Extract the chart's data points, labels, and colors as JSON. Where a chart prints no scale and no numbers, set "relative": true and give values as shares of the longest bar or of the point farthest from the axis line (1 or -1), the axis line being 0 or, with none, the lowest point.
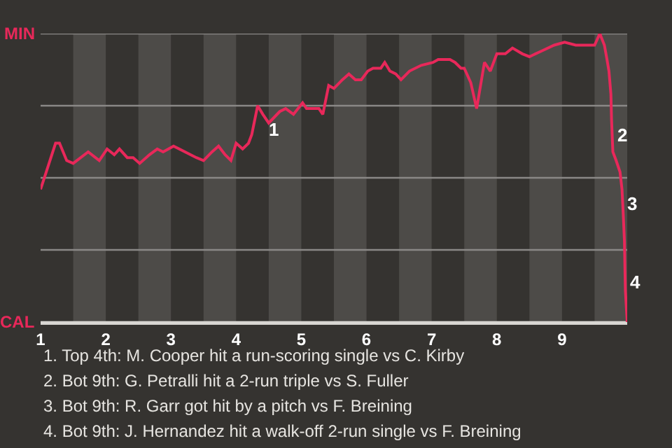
{
  "chart_data": {
    "type": "line",
    "x": [
      1.0,
      1.23,
      1.29,
      1.4,
      1.5,
      1.73,
      1.9,
      2.02,
      2.13,
      2.21,
      2.33,
      2.42,
      2.52,
      2.67,
      2.79,
      2.88,
      3.04,
      3.39,
      3.5,
      3.63,
      3.73,
      3.83,
      3.92,
      4.0,
      4.1,
      4.19,
      4.24,
      4.33,
      4.41,
      4.5,
      4.67,
      4.76,
      4.88,
      5.02,
      5.08,
      5.27,
      5.33,
      5.42,
      5.5,
      5.63,
      5.73,
      5.83,
      5.92,
      6.02,
      6.1,
      6.22,
      6.28,
      6.36,
      6.45,
      6.53,
      6.66,
      6.84,
      7.02,
      7.1,
      7.28,
      7.36,
      7.45,
      7.5,
      7.6,
      7.69,
      7.81,
      7.9,
      8.0,
      8.13,
      8.24,
      8.39,
      8.5,
      8.69,
      8.88,
      9.04,
      9.21,
      9.5,
      9.58,
      9.65,
      9.69,
      9.72,
      9.75,
      9.76,
      9.78,
      9.83,
      9.89,
      9.92,
      9.94,
      9.958,
      9.965,
      9.972,
      10.0
    ],
    "series": [
      {
        "color": "#e8285a",
        "values": [
          0.46,
          0.62,
          0.62,
          0.56,
          0.55,
          0.59,
          0.56,
          0.6,
          0.58,
          0.6,
          0.57,
          0.57,
          0.55,
          0.58,
          0.6,
          0.59,
          0.61,
          0.57,
          0.56,
          0.59,
          0.61,
          0.58,
          0.56,
          0.62,
          0.6,
          0.62,
          0.65,
          0.75,
          0.72,
          0.69,
          0.73,
          0.74,
          0.72,
          0.76,
          0.74,
          0.74,
          0.72,
          0.82,
          0.81,
          0.84,
          0.86,
          0.84,
          0.84,
          0.87,
          0.88,
          0.88,
          0.9,
          0.87,
          0.86,
          0.84,
          0.87,
          0.89,
          0.9,
          0.91,
          0.91,
          0.9,
          0.88,
          0.88,
          0.83,
          0.74,
          0.9,
          0.87,
          0.93,
          0.93,
          0.95,
          0.93,
          0.92,
          0.94,
          0.96,
          0.97,
          0.96,
          0.96,
          1,
          0.96,
          0.91,
          0.87,
          0.79,
          0.7,
          0.59,
          0.56,
          0.52,
          0.46,
          0.37,
          0.28,
          0.19,
          0.11,
          0
        ]
      }
    ],
    "relative": true,
    "xlim": [
      1,
      10
    ],
    "xticks": [
      1,
      2,
      3,
      4,
      5,
      6,
      7,
      8,
      9
    ],
    "marker": "none",
    "line_style": "solid",
    "ref_lines": [
      {
        "axis": "y",
        "value": 1,
        "label": "MIN",
        "color": "#8a8886"
      },
      {
        "axis": "y",
        "value": 0.75,
        "color": "#8a8886"
      },
      {
        "axis": "y",
        "value": 0.5,
        "color": "#8a8886"
      },
      {
        "axis": "y",
        "value": 0.25,
        "color": "#8a8886"
      },
      {
        "axis": "y",
        "value": 0,
        "label": "CAL",
        "color": "#d8d6d2"
      }
    ],
    "bands": [
      {
        "axis": "x",
        "from": 1.5,
        "to": 2,
        "color": "#4d4b48"
      },
      {
        "axis": "x",
        "from": 2.5,
        "to": 3,
        "color": "#4d4b48"
      },
      {
        "axis": "x",
        "from": 3.5,
        "to": 4,
        "color": "#4d4b48"
      },
      {
        "axis": "x",
        "from": 4.5,
        "to": 5,
        "color": "#4d4b48"
      },
      {
        "axis": "x",
        "from": 5.5,
        "to": 6,
        "color": "#4d4b48"
      },
      {
        "axis": "x",
        "from": 6.5,
        "to": 7,
        "color": "#4d4b48"
      },
      {
        "axis": "x",
        "from": 7.5,
        "to": 8,
        "color": "#4d4b48"
      },
      {
        "axis": "x",
        "from": 8.5,
        "to": 9,
        "color": "#4d4b48"
      },
      {
        "axis": "x",
        "from": 9.5,
        "to": 10,
        "color": "#4d4b48"
      }
    ],
    "annotations": [
      {
        "text": "1",
        "x": 4.41,
        "y": 0.72
      },
      {
        "text": "2",
        "x": 9.76,
        "y": 0.7
      },
      {
        "text": "3",
        "x": 9.92,
        "y": 0.46
      },
      {
        "text": "4",
        "x": 9.965,
        "y": 0.19
      },
      "1. Top 4th: M. Cooper hit a run-scoring single vs C. Kirby",
      "2. Bot 9th: G. Petralli hit a 2-run triple vs S. Fuller",
      "3. Bot 9th: R. Garr got hit by a pitch vs F. Breining",
      "4. Bot 9th: J. Hernandez hit a walk-off 2-run single vs F. Breining"
    ]
  }
}
